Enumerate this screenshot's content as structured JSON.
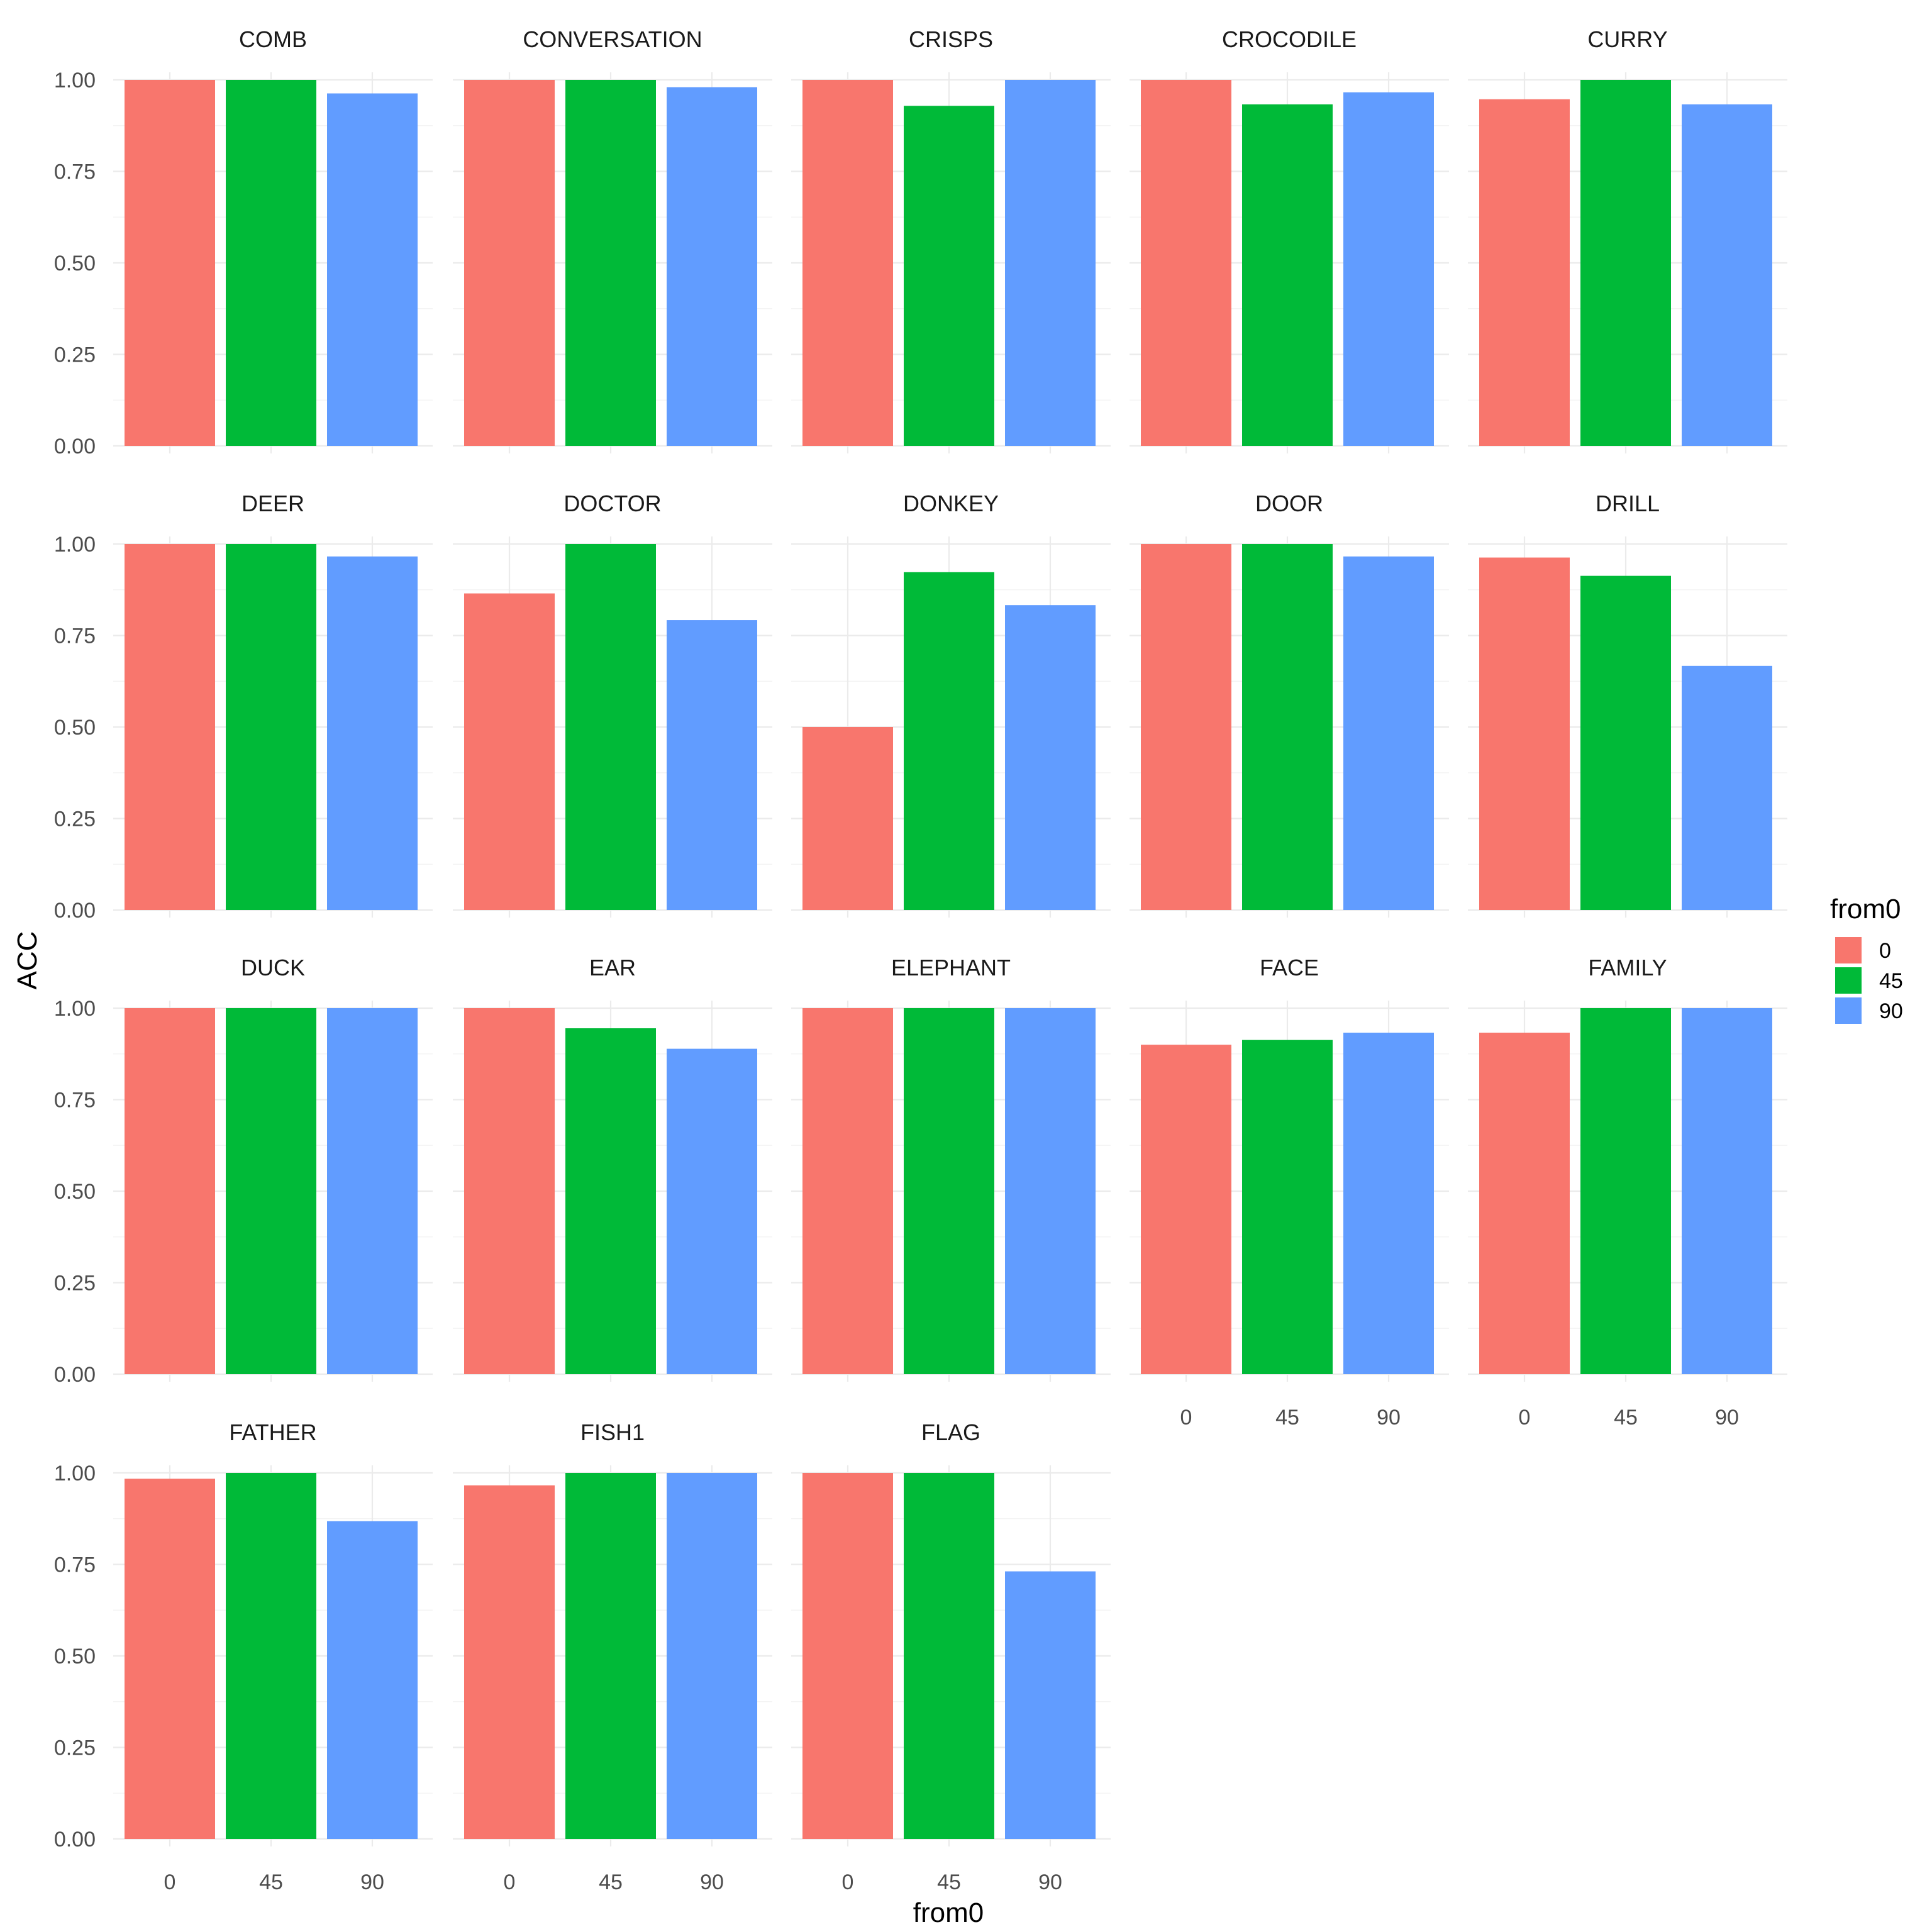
{
  "chart_data": {
    "type": "bar",
    "ylabel": "ACC",
    "xlabel": "from0",
    "ylim": [
      0,
      1
    ],
    "y_ticks": [
      "0.00",
      "0.25",
      "0.50",
      "0.75",
      "1.00"
    ],
    "categories": [
      "0",
      "45",
      "90"
    ],
    "legend": {
      "title": "from0",
      "position": "right",
      "items": [
        {
          "label": "0",
          "color": "#F8766D"
        },
        {
          "label": "45",
          "color": "#00BA38"
        },
        {
          "label": "90",
          "color": "#619CFF"
        }
      ]
    },
    "grid": true,
    "facets": [
      {
        "title": "COMB",
        "values": [
          1.0,
          1.0,
          0.963
        ]
      },
      {
        "title": "CONVERSATION",
        "values": [
          1.0,
          1.0,
          0.98
        ]
      },
      {
        "title": "CRISPS",
        "values": [
          1.0,
          0.929,
          1.0
        ]
      },
      {
        "title": "CROCODILE",
        "values": [
          1.0,
          0.933,
          0.966
        ]
      },
      {
        "title": "CURRY",
        "values": [
          0.947,
          1.0,
          0.933
        ]
      },
      {
        "title": "DEER",
        "values": [
          1.0,
          1.0,
          0.966
        ]
      },
      {
        "title": "DOCTOR",
        "values": [
          0.865,
          1.0,
          0.792
        ]
      },
      {
        "title": "DONKEY",
        "values": [
          0.5,
          0.923,
          0.833
        ]
      },
      {
        "title": "DOOR",
        "values": [
          1.0,
          1.0,
          0.966
        ]
      },
      {
        "title": "DRILL",
        "values": [
          0.963,
          0.913,
          0.667
        ]
      },
      {
        "title": "DUCK",
        "values": [
          1.0,
          1.0,
          1.0
        ]
      },
      {
        "title": "EAR",
        "values": [
          1.0,
          0.945,
          0.889
        ]
      },
      {
        "title": "ELEPHANT",
        "values": [
          1.0,
          1.0,
          1.0
        ]
      },
      {
        "title": "FACE",
        "values": [
          0.9,
          0.913,
          0.933
        ]
      },
      {
        "title": "FAMILY",
        "values": [
          0.933,
          1.0,
          1.0
        ]
      },
      {
        "title": "FATHER",
        "values": [
          0.984,
          1.0,
          0.868
        ]
      },
      {
        "title": "FISH1",
        "values": [
          0.966,
          1.0,
          1.0
        ]
      },
      {
        "title": "FLAG",
        "values": [
          1.0,
          1.0,
          0.731
        ]
      }
    ]
  }
}
